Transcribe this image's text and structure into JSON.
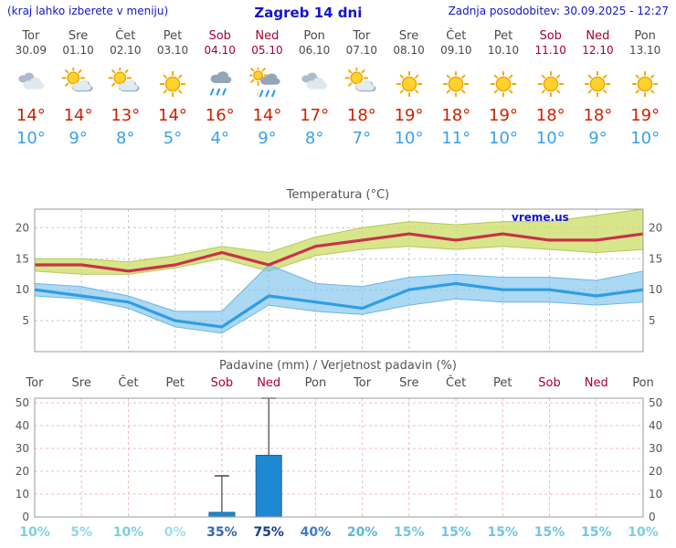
{
  "header": {
    "note": "(kraj lahko izberete v meniju)",
    "title": "Zagreb 14 dni",
    "updated": "Zadnja posodobitev: 30.09.2025 - 12:27"
  },
  "watermark": "vreme.us",
  "colors": {
    "header_blue": "#1414cc",
    "weekday_gray": "#4a4a4a",
    "weekend_red": "#a80032",
    "high_red": "#cc2200",
    "low_blue": "#3aa0e8",
    "temp_max_line": "#c83248",
    "temp_max_band": "#cede6e",
    "temp_min_line": "#2e9de4",
    "temp_min_band": "#7ec3ec",
    "bar_blue": "#1e88d2",
    "whisker_gray": "#444444"
  },
  "days": [
    {
      "name": "Tor",
      "date": "30.09",
      "weekend": false,
      "icon": "cloudy",
      "high": "14°",
      "low": "10°"
    },
    {
      "name": "Sre",
      "date": "01.10",
      "weekend": false,
      "icon": "partly",
      "high": "14°",
      "low": "9°"
    },
    {
      "name": "Čet",
      "date": "02.10",
      "weekend": false,
      "icon": "partly",
      "high": "13°",
      "low": "8°"
    },
    {
      "name": "Pet",
      "date": "03.10",
      "weekend": false,
      "icon": "sun",
      "high": "14°",
      "low": "5°"
    },
    {
      "name": "Sob",
      "date": "04.10",
      "weekend": true,
      "icon": "rain",
      "high": "16°",
      "low": "4°"
    },
    {
      "name": "Ned",
      "date": "05.10",
      "weekend": true,
      "icon": "rain-sun",
      "high": "14°",
      "low": "9°"
    },
    {
      "name": "Pon",
      "date": "06.10",
      "weekend": false,
      "icon": "cloudy",
      "high": "17°",
      "low": "8°"
    },
    {
      "name": "Tor",
      "date": "07.10",
      "weekend": false,
      "icon": "partly",
      "high": "18°",
      "low": "7°"
    },
    {
      "name": "Sre",
      "date": "08.10",
      "weekend": false,
      "icon": "sun",
      "high": "19°",
      "low": "10°"
    },
    {
      "name": "Čet",
      "date": "09.10",
      "weekend": false,
      "icon": "sun",
      "high": "18°",
      "low": "11°"
    },
    {
      "name": "Pet",
      "date": "10.10",
      "weekend": false,
      "icon": "sun",
      "high": "19°",
      "low": "10°"
    },
    {
      "name": "Sob",
      "date": "11.10",
      "weekend": true,
      "icon": "sun",
      "high": "18°",
      "low": "10°"
    },
    {
      "name": "Ned",
      "date": "12.10",
      "weekend": true,
      "icon": "sun",
      "high": "18°",
      "low": "9°"
    },
    {
      "name": "Pon",
      "date": "13.10",
      "weekend": false,
      "icon": "sun",
      "high": "19°",
      "low": "10°"
    }
  ],
  "chart_data": [
    {
      "type": "line",
      "title": "Temperatura (°C)",
      "x": [
        "Tor",
        "Sre",
        "Čet",
        "Pet",
        "Sob",
        "Ned",
        "Pon",
        "Tor",
        "Sre",
        "Čet",
        "Pet",
        "Sob",
        "Ned",
        "Pon"
      ],
      "ylim": [
        0,
        23
      ],
      "yticks": [
        5,
        10,
        15,
        20
      ],
      "grid": true,
      "series": [
        {
          "name": "max",
          "values": [
            14,
            14,
            13,
            14,
            16,
            14,
            17,
            18,
            19,
            18,
            19,
            18,
            18,
            19
          ]
        },
        {
          "name": "max_band_upper",
          "values": [
            15,
            15,
            14.5,
            15.5,
            17,
            16,
            18.5,
            20,
            21,
            20.5,
            21,
            21,
            22,
            23
          ]
        },
        {
          "name": "max_band_lower",
          "values": [
            13,
            12.5,
            12.5,
            13.5,
            15,
            13,
            15.5,
            16.5,
            17,
            16.5,
            17,
            16.5,
            16,
            16.5
          ]
        },
        {
          "name": "min",
          "values": [
            10,
            9,
            8,
            5,
            4,
            9,
            8,
            7,
            10,
            11,
            10,
            10,
            9,
            10
          ]
        },
        {
          "name": "min_band_upper",
          "values": [
            11,
            10.5,
            9,
            6.5,
            6.5,
            14,
            11,
            10.5,
            12,
            12.5,
            12,
            12,
            11.5,
            13
          ]
        },
        {
          "name": "min_band_lower",
          "values": [
            9,
            8.5,
            7,
            4,
            3,
            7.5,
            6.5,
            6,
            7.5,
            8.5,
            8,
            8,
            7.5,
            8
          ]
        }
      ]
    },
    {
      "type": "bar",
      "title": "Padavine (mm) / Verjetnost padavin (%)",
      "x": [
        "Tor",
        "Sre",
        "Čet",
        "Pet",
        "Sob",
        "Ned",
        "Pon",
        "Tor",
        "Sre",
        "Čet",
        "Pet",
        "Sob",
        "Ned",
        "Pon"
      ],
      "weekend": [
        false,
        false,
        false,
        false,
        true,
        true,
        false,
        false,
        false,
        false,
        false,
        true,
        true,
        false
      ],
      "ylim": [
        0,
        52
      ],
      "yticks": [
        0,
        10,
        20,
        30,
        40,
        50
      ],
      "grid": true,
      "values": [
        0,
        0,
        0,
        0,
        2,
        27,
        0,
        0,
        0,
        0,
        0,
        0,
        0,
        0
      ],
      "whisker_max": [
        0,
        0,
        0,
        0,
        18,
        52,
        0,
        0,
        0,
        0,
        0,
        0,
        0,
        0
      ],
      "prob_labels": [
        "10%",
        "5%",
        "10%",
        "0%",
        "35%",
        "75%",
        "40%",
        "20%",
        "15%",
        "15%",
        "15%",
        "15%",
        "15%",
        "10%"
      ],
      "prob_colors": [
        "#7bcfe4",
        "#8fd9ea",
        "#7bcfe4",
        "#9fdfee",
        "#3565ad",
        "#173c8e",
        "#3f7fc1",
        "#5fb6da",
        "#72c6e0",
        "#72c6e0",
        "#72c6e0",
        "#72c6e0",
        "#72c6e0",
        "#7bcfe4"
      ]
    }
  ]
}
